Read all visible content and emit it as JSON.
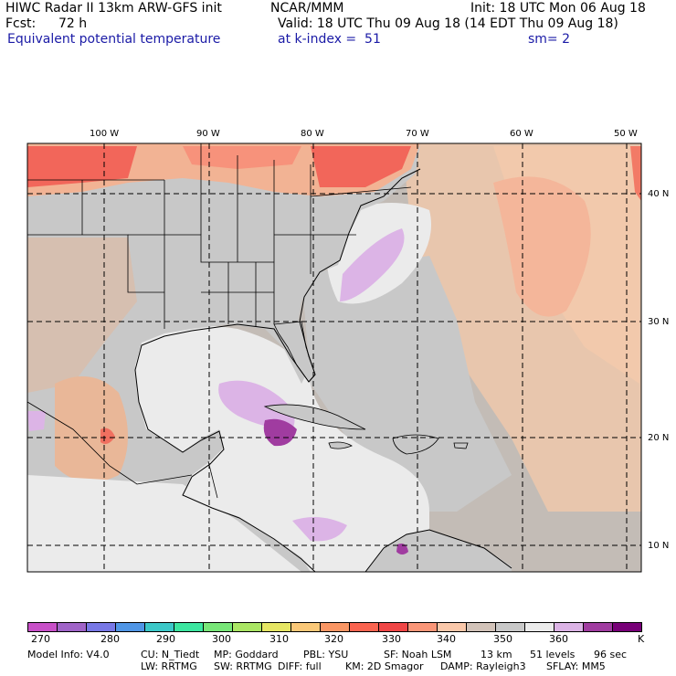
{
  "header": {
    "title": "HIWC Radar II 13km ARW-GFS init",
    "org": "NCAR/MMM",
    "init": "Init: 18 UTC Mon 06 Aug 18",
    "fcst_label": "Fcst:",
    "fcst_value": "72 h",
    "valid": "Valid: 18 UTC Thu 09 Aug 18 (14 EDT Thu 09 Aug 18)",
    "field": "Equivalent potential temperature",
    "level": "at k-index =  51",
    "smoothing": "sm= 2"
  },
  "map": {
    "lon_labels": [
      "100 W",
      "90 W",
      "80 W",
      "70 W",
      "60 W",
      "50 W"
    ],
    "lat_labels": [
      "40 N",
      "30 N",
      "20 N",
      "10 N"
    ]
  },
  "colorbar": {
    "labels": [
      "270",
      "280",
      "290",
      "300",
      "310",
      "320",
      "330",
      "340",
      "350",
      "360"
    ],
    "unit": "K",
    "colors": [
      "#c850c8",
      "#a064c8",
      "#7878e6",
      "#5096e6",
      "#3cc8c8",
      "#3ce6a0",
      "#78e678",
      "#aae664",
      "#e6e664",
      "#fac878",
      "#fa9664",
      "#fa6450",
      "#f04646",
      "#fa9678",
      "#fac8aa",
      "#d2c3b9",
      "#c8c8c8",
      "#ebebeb",
      "#dcb4e6",
      "#a03ca0",
      "#780078"
    ]
  },
  "footer": {
    "line1": [
      "Model Info: V4.0",
      "CU: N_Tiedt",
      "MP: Goddard",
      "PBL: YSU",
      "SF: Noah LSM",
      "13 km",
      "51 levels",
      "96 sec"
    ],
    "line2": [
      "LW: RRTMG",
      "SW: RRTMG",
      "DIFF: full",
      "KM: 2D Smagor",
      "DAMP: Rayleigh3",
      "SFLAY: MM5"
    ]
  }
}
